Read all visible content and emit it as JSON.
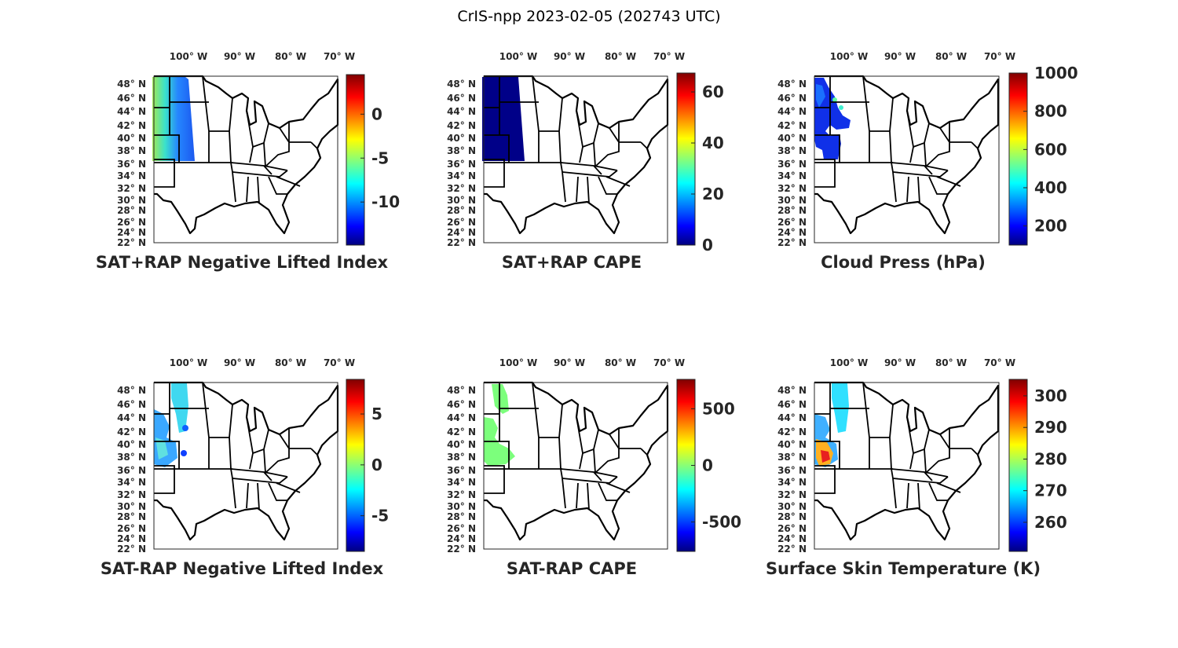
{
  "figure_title": "CrIS-npp 2023-02-05 (202743 UTC)",
  "lon_ticks": [
    "100° W",
    "90° W",
    "80° W",
    "70° W"
  ],
  "lat_ticks": [
    "48° N",
    "46° N",
    "44° N",
    "42° N",
    "40° N",
    "38° N",
    "36° N",
    "34° N",
    "32° N",
    "30° N",
    "28° N",
    "26° N",
    "24° N",
    "22° N"
  ],
  "chart_data": [
    {
      "type": "heatmap",
      "title": "SAT+RAP Negative Lifted Index",
      "colormap": "jet",
      "clim": [
        -14.9,
        4.5
      ],
      "colorbar_ticks": [
        "0",
        "-5",
        "-10"
      ],
      "colorbar_tick_values": [
        0,
        -5,
        -10
      ]
    },
    {
      "type": "heatmap",
      "title": "SAT+RAP CAPE",
      "colormap": "jet",
      "clim": [
        0,
        67.4
      ],
      "colorbar_ticks": [
        "60",
        "40",
        "20",
        "0"
      ],
      "colorbar_tick_values": [
        60,
        40,
        20,
        0
      ]
    },
    {
      "type": "heatmap",
      "title": "Cloud Press (hPa)",
      "colormap": "jet",
      "clim": [
        100,
        1000
      ],
      "colorbar_ticks": [
        "1000",
        "800",
        "600",
        "400",
        "200"
      ],
      "colorbar_tick_values": [
        1000,
        800,
        600,
        400,
        200
      ]
    },
    {
      "type": "heatmap",
      "title": "SAT-RAP Negative Lifted Index",
      "colormap": "jet",
      "clim": [
        -8.5,
        8.4
      ],
      "colorbar_ticks": [
        "5",
        "0",
        "-5"
      ],
      "colorbar_tick_values": [
        5,
        0,
        -5
      ]
    },
    {
      "type": "heatmap",
      "title": "SAT-RAP CAPE",
      "colormap": "jet",
      "clim": [
        -760,
        760
      ],
      "colorbar_ticks": [
        "500",
        "0",
        "-500"
      ],
      "colorbar_tick_values": [
        500,
        0,
        -500
      ]
    },
    {
      "type": "heatmap",
      "title": "Surface Skin Temperature (K)",
      "colormap": "jet",
      "clim": [
        250.8,
        305.2
      ],
      "colorbar_ticks": [
        "300",
        "290",
        "280",
        "270",
        "260"
      ],
      "colorbar_tick_values": [
        300,
        290,
        280,
        270,
        260
      ]
    }
  ]
}
